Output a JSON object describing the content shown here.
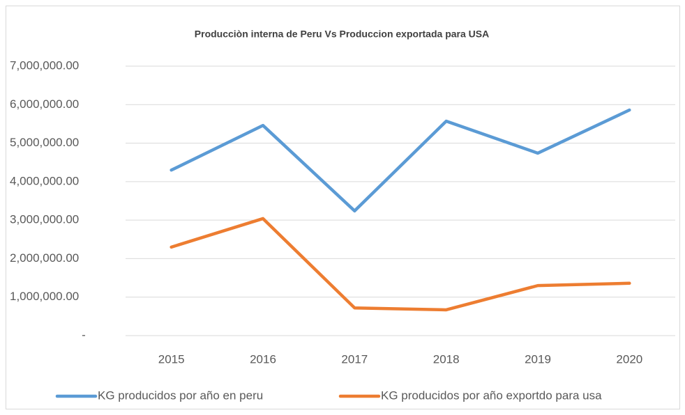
{
  "chart_data": {
    "type": "line",
    "title": "Producciòn interna de Peru  Vs Produccion exportada para USA",
    "categories": [
      "2015",
      "2016",
      "2017",
      "2018",
      "2019",
      "2020"
    ],
    "series": [
      {
        "name": "KG producidos por año en peru",
        "color": "#5b9bd5",
        "values": [
          4300000,
          5460000,
          3240000,
          5570000,
          4740000,
          5860000
        ]
      },
      {
        "name": "KG producidos por año exportdo para usa",
        "color": "#ed7d31",
        "values": [
          2300000,
          3040000,
          720000,
          670000,
          1300000,
          1360000
        ]
      }
    ],
    "ylim": [
      0,
      7000000
    ],
    "yticks": [
      {
        "value": 0,
        "label": "-"
      },
      {
        "value": 1000000,
        "label": "1,000,000.00"
      },
      {
        "value": 2000000,
        "label": "2,000,000.00"
      },
      {
        "value": 3000000,
        "label": "3,000,000.00"
      },
      {
        "value": 4000000,
        "label": "4,000,000.00"
      },
      {
        "value": 5000000,
        "label": "5,000,000.00"
      },
      {
        "value": 6000000,
        "label": "6,000,000.00"
      },
      {
        "value": 7000000,
        "label": "7,000,000.00"
      }
    ],
    "grid": true,
    "legend": "bottom"
  }
}
